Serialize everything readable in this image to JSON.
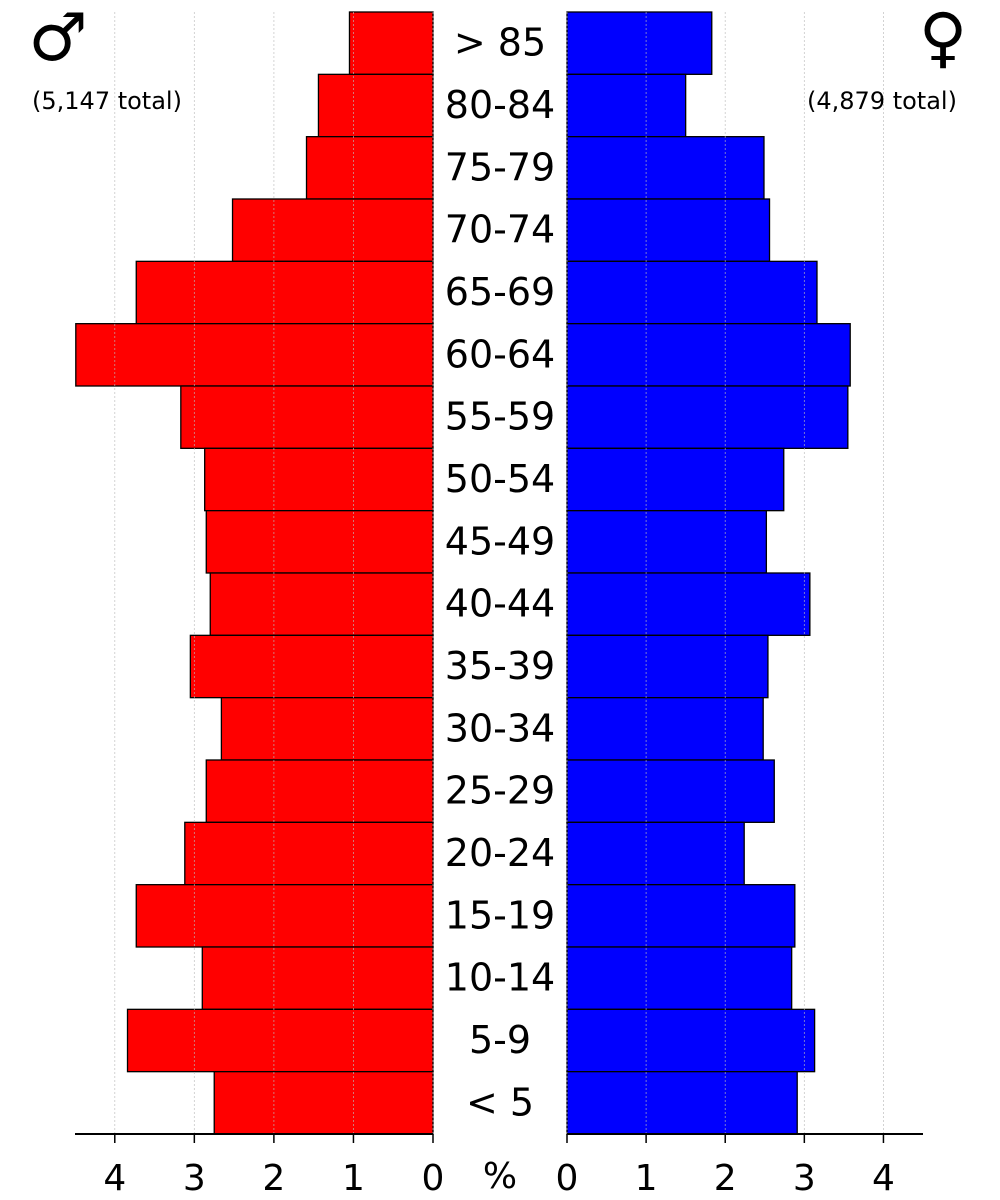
{
  "chart_data": {
    "type": "pyramid",
    "categories": [
      "> 85",
      "80-84",
      "75-79",
      "70-74",
      "65-69",
      "60-64",
      "55-59",
      "50-54",
      "45-49",
      "40-44",
      "35-39",
      "30-34",
      "25-29",
      "20-24",
      "15-19",
      "10-14",
      "5-9",
      "< 5"
    ],
    "series": [
      {
        "name": "♂",
        "total_label": "(5,147 total)",
        "color": "#ff0000",
        "values": [
          1.05,
          1.44,
          1.59,
          2.52,
          3.73,
          4.49,
          3.17,
          2.87,
          2.85,
          2.8,
          3.05,
          2.66,
          2.85,
          3.12,
          3.73,
          2.9,
          3.84,
          2.75
        ]
      },
      {
        "name": "♀",
        "total_label": "(4,879 total)",
        "color": "#0000ff",
        "values": [
          1.83,
          1.5,
          2.49,
          2.56,
          3.16,
          3.58,
          3.55,
          2.74,
          2.52,
          3.07,
          2.54,
          2.48,
          2.62,
          2.24,
          2.88,
          2.84,
          3.13,
          2.91
        ]
      }
    ],
    "x_unit_label": "%",
    "xlim": [
      0,
      4.5
    ],
    "xticks": [
      0,
      1,
      2,
      3,
      4
    ],
    "grid": true
  }
}
